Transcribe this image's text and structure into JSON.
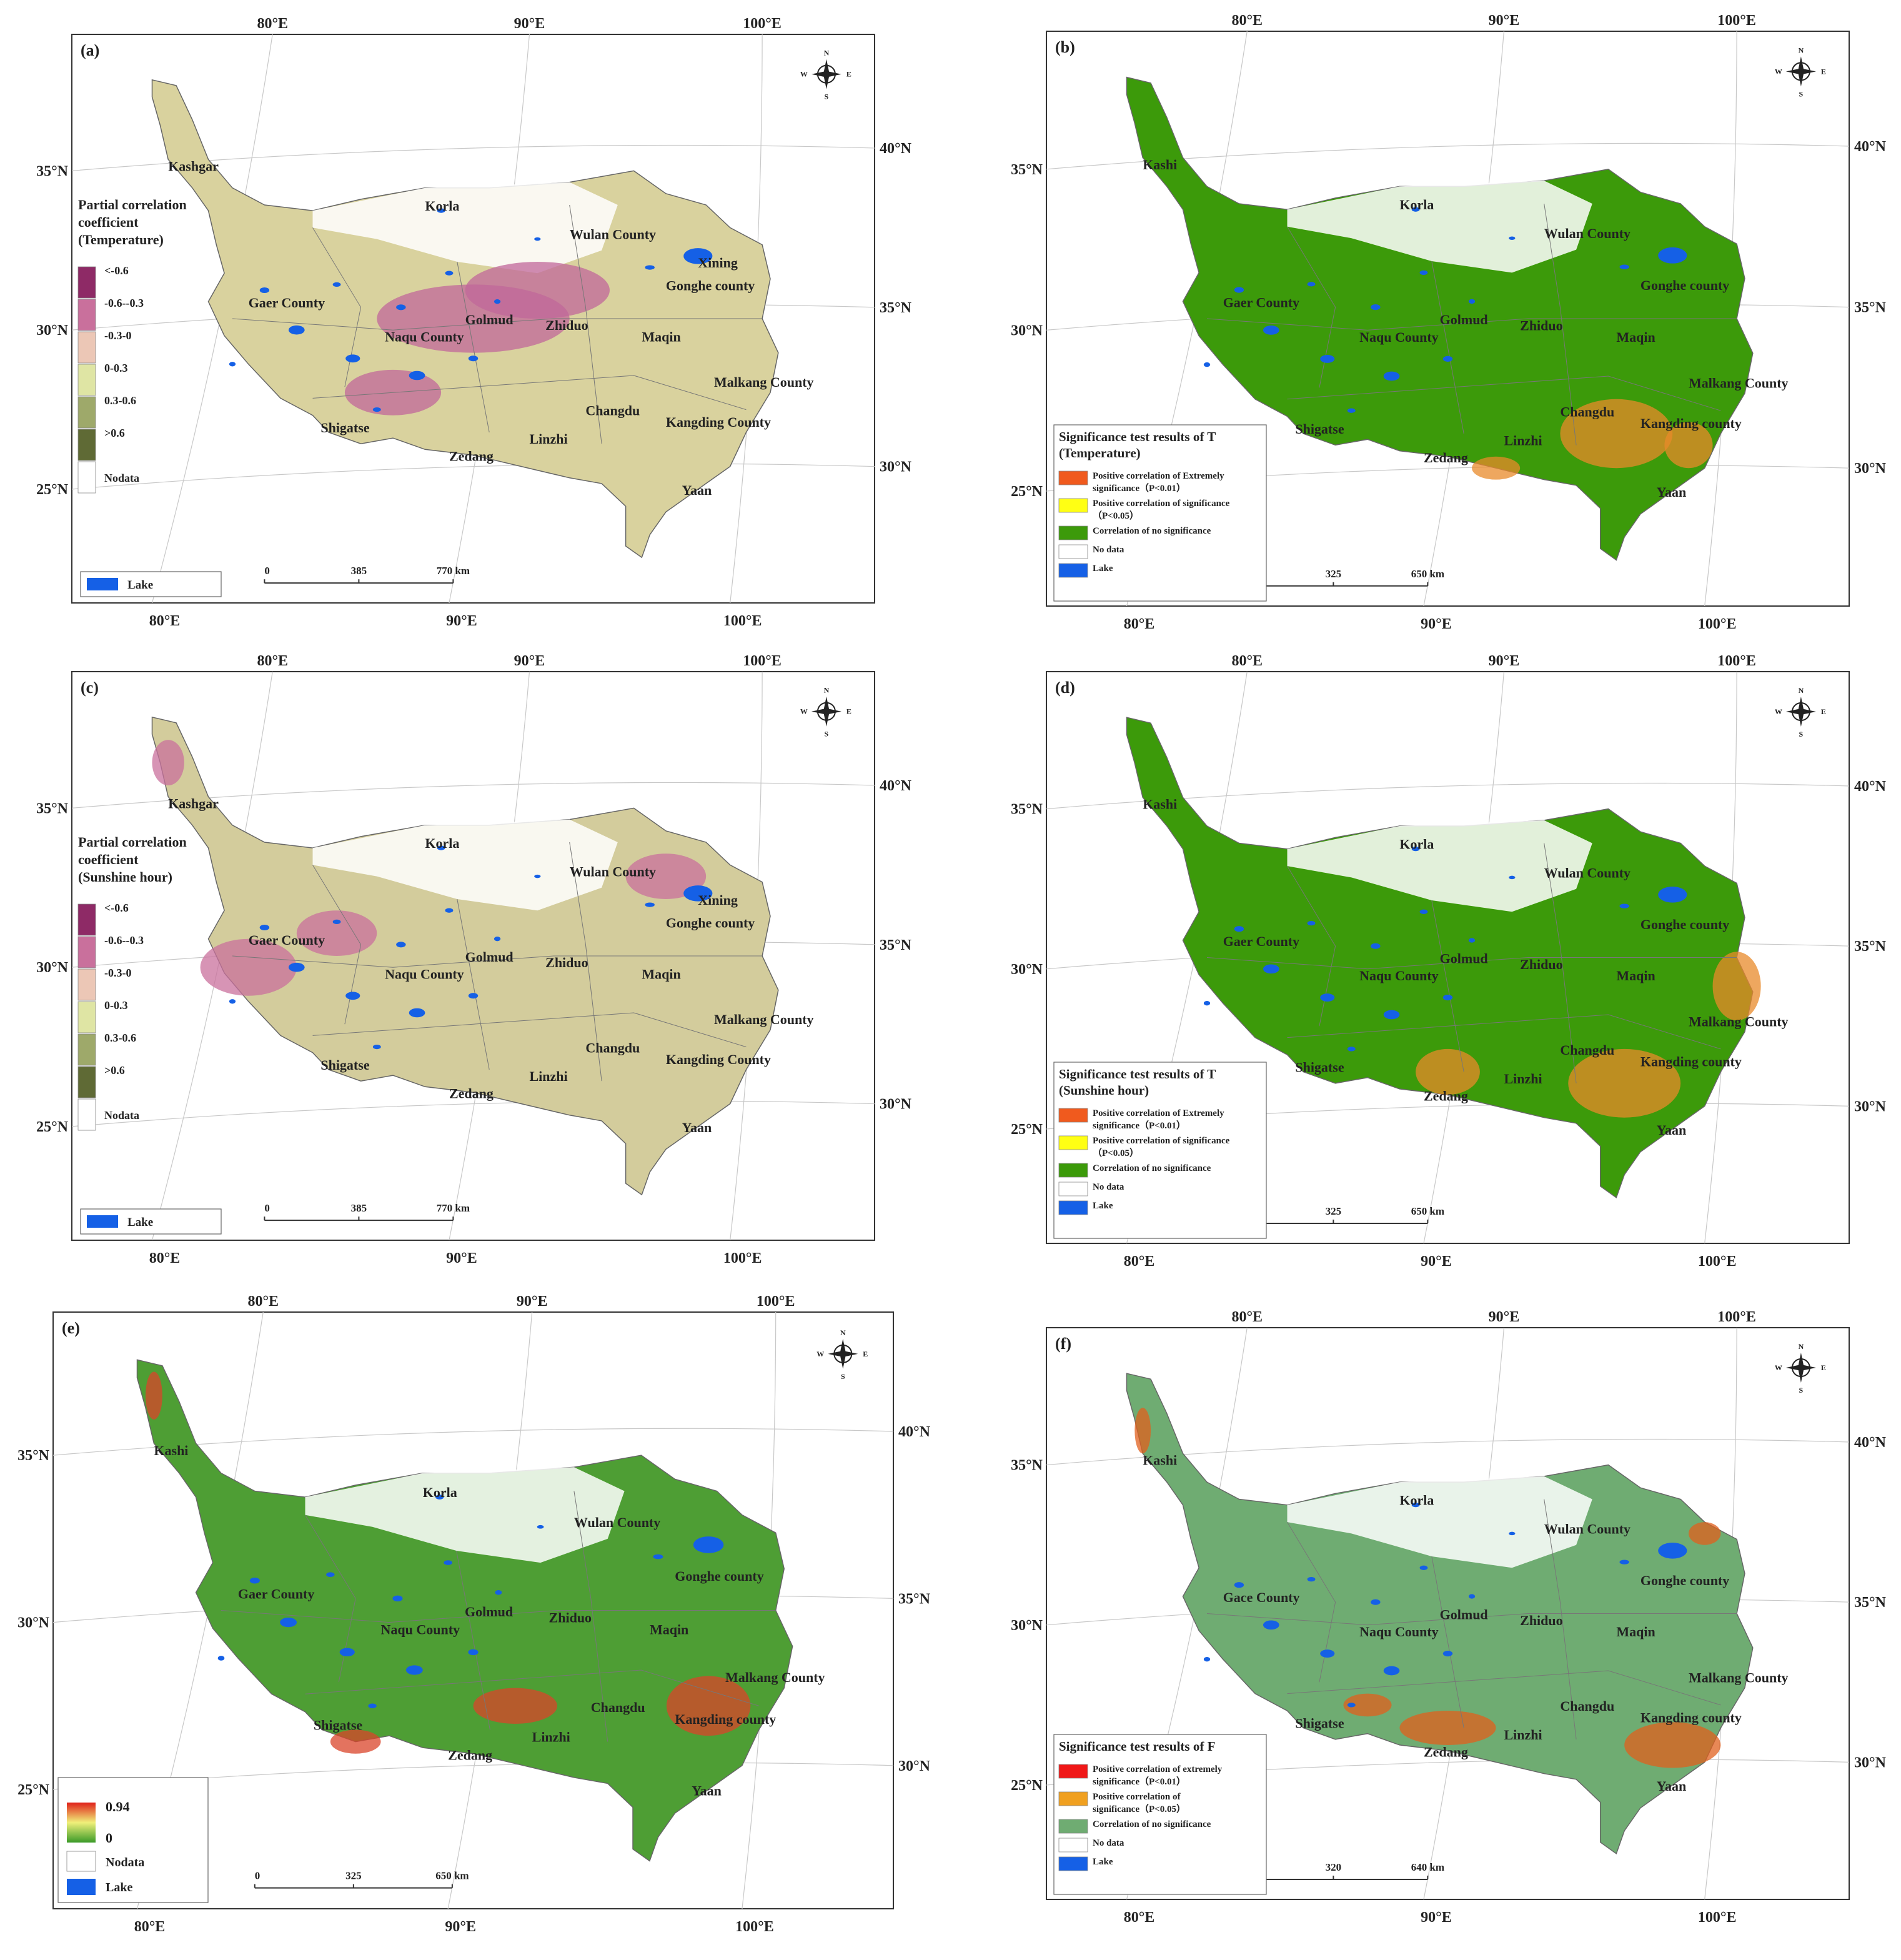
{
  "panels": [
    {
      "id": "a",
      "label": "(a)",
      "legend_type": "partial",
      "legend_title": [
        "Partial correlation",
        "coefficient",
        "(Temperature)"
      ],
      "legend_items": [
        {
          "label": "<-0.6",
          "color": "#8e2a66"
        },
        {
          "label": "-0.6--0.3",
          "color": "#c9709c"
        },
        {
          "label": "-0.3-0",
          "color": "#ecc7b6"
        },
        {
          "label": "0-0.3",
          "color": "#dfe5a4"
        },
        {
          "label": "0.3-0.6",
          "color": "#9ea96a"
        },
        {
          "label": ">0.6",
          "color": "#5f6a35"
        },
        {
          "label": "Nodata",
          "color": "#ffffff"
        }
      ],
      "lake_label": "Lake",
      "scale": [
        "0",
        "385",
        "770 km"
      ],
      "top_lon": [
        "80°E",
        "90°E",
        "100°E"
      ],
      "bottom_lon": [
        "80°E",
        "90°E",
        "100°E"
      ],
      "left_lat": [
        "35°N",
        "30°N",
        "25°N"
      ],
      "right_lat": [
        "40°N",
        "35°N",
        "30°N"
      ],
      "places": {
        "Kashgar": "Kashgar",
        "Korla": "Korla",
        "Wulan County": "Wulan County",
        "Xining": "Xining",
        "Gonghe county": "Gonghe county",
        "Gaer County": "Gaer County",
        "Golmud": "Golmud",
        "Zhiduo": "Zhiduo",
        "Naqu County": "Naqu County",
        "Maqin": "Maqin",
        "Malkang County": "Malkang County",
        "Changdu": "Changdu",
        "Kangding County": "Kangding County",
        "Shigatse": "Shigatse",
        "Zedang": "Zedang",
        "Linzhi": "Linzhi",
        "Yaan": "Yaan"
      }
    },
    {
      "id": "b",
      "label": "(b)",
      "legend_type": "signif",
      "legend_title": [
        "Significance test results of T",
        "(Temperature)"
      ],
      "legend_items": [
        {
          "label": [
            "Positive correlation of Extremely",
            "significance（P<0.01）"
          ],
          "color": "#f05a1e"
        },
        {
          "label": [
            "Positive correlation of significance",
            "（P<0.05）"
          ],
          "color": "#ffff14"
        },
        {
          "label": [
            "Correlation of  no significance"
          ],
          "color": "#3c9a0a"
        },
        {
          "label": [
            "No data"
          ],
          "color": "#ffffff"
        },
        {
          "label": [
            "Lake"
          ],
          "color": "#1560e6"
        }
      ],
      "scale": [
        "0",
        "325",
        "650 km"
      ],
      "top_lon": [
        "80°E",
        "90°E",
        "100°E"
      ],
      "bottom_lon": [
        "80°E",
        "90°E",
        "100°E"
      ],
      "left_lat": [
        "35°N",
        "30°N",
        "25°N"
      ],
      "right_lat": [
        "40°N",
        "35°N",
        "30°N"
      ],
      "places": {
        "Kashgar": "Kashi",
        "Korla": "Korla",
        "Wulan County": "Wulan County",
        "Gonghe county": "Gonghe county",
        "Gaer County": "Gaer County",
        "Golmud": "Golmud",
        "Zhiduo": "Zhiduo",
        "Naqu County": "Naqu County",
        "Maqin": "Maqin",
        "Malkang County": "Malkang County",
        "Changdu": "Changdu",
        "Kangding County": "Kangding county",
        "Shigatse": "Shigatse",
        "Zedang": "Zedang",
        "Linzhi": "Linzhi",
        "Yaan": "Yaan"
      }
    },
    {
      "id": "c",
      "label": "(c)",
      "legend_type": "partial",
      "legend_title": [
        "Partial correlation",
        "coefficient",
        "(Sunshine hour)"
      ],
      "legend_items": [
        {
          "label": "<-0.6",
          "color": "#8e2a66"
        },
        {
          "label": "-0.6--0.3",
          "color": "#c9709c"
        },
        {
          "label": "-0.3-0",
          "color": "#ecc7b6"
        },
        {
          "label": "0-0.3",
          "color": "#dfe5a4"
        },
        {
          "label": "0.3-0.6",
          "color": "#9ea96a"
        },
        {
          "label": ">0.6",
          "color": "#5f6a35"
        },
        {
          "label": "Nodata",
          "color": "#ffffff"
        }
      ],
      "lake_label": "Lake",
      "scale": [
        "0",
        "385",
        "770 km"
      ],
      "top_lon": [
        "80°E",
        "90°E",
        "100°E"
      ],
      "bottom_lon": [
        "80°E",
        "90°E",
        "100°E"
      ],
      "left_lat": [
        "35°N",
        "30°N",
        "25°N"
      ],
      "right_lat": [
        "40°N",
        "35°N",
        "30°N"
      ],
      "places": {
        "Kashgar": "Kashgar",
        "Korla": "Korla",
        "Wulan County": "Wulan County",
        "Xining": "Xining",
        "Gonghe county": "Gonghe county",
        "Gaer County": "Gaer County",
        "Golmud": "Golmud",
        "Zhiduo": "Zhiduo",
        "Naqu County": "Naqu County",
        "Maqin": "Maqin",
        "Malkang County": "Malkang County",
        "Changdu": "Changdu",
        "Kangding County": "Kangding County",
        "Shigatse": "Shigatse",
        "Zedang": "Zedang",
        "Linzhi": "Linzhi",
        "Yaan": "Yaan"
      }
    },
    {
      "id": "d",
      "label": "(d)",
      "legend_type": "signif",
      "legend_title": [
        "Significance test results of T",
        "(Sunshine hour)"
      ],
      "legend_items": [
        {
          "label": [
            "Positive correlation of Extremely",
            "significance（P<0.01）"
          ],
          "color": "#f05a1e"
        },
        {
          "label": [
            "Positive correlation of significance",
            "（P<0.05）"
          ],
          "color": "#ffff14"
        },
        {
          "label": [
            "Correlation of  no significance"
          ],
          "color": "#3c9a0a"
        },
        {
          "label": [
            "No data"
          ],
          "color": "#ffffff"
        },
        {
          "label": [
            "Lake"
          ],
          "color": "#1560e6"
        }
      ],
      "scale": [
        "0",
        "325",
        "650 km"
      ],
      "top_lon": [
        "80°E",
        "90°E",
        "100°E"
      ],
      "bottom_lon": [
        "80°E",
        "90°E",
        "100°E"
      ],
      "left_lat": [
        "35°N",
        "30°N",
        "25°N"
      ],
      "right_lat": [
        "40°N",
        "35°N",
        "30°N"
      ],
      "places": {
        "Kashgar": "Kashi",
        "Korla": "Korla",
        "Wulan County": "Wulan County",
        "Gonghe county": "Gonghe county",
        "Gaer County": "Gaer County",
        "Golmud": "Golmud",
        "Zhiduo": "Zhiduo",
        "Naqu County": "Naqu County",
        "Maqin": "Maqin",
        "Malkang County": "Malkang County",
        "Changdu": "Changdu",
        "Kangding County": "Kangding county",
        "Shigatse": "Shigatse",
        "Zedang": "Zedang",
        "Linzhi": "Linzhi",
        "Yaan": "Yaan"
      }
    },
    {
      "id": "e",
      "label": "(e)",
      "legend_type": "gradient",
      "legend_items": [
        {
          "label": "0.94",
          "color": "#e0201a"
        },
        {
          "label": "0",
          "color": "#3a9a28"
        },
        {
          "label": "Nodata",
          "color": "#ffffff"
        },
        {
          "label": "Lake",
          "color": "#1560e6"
        }
      ],
      "scale": [
        "0",
        "325",
        "650 km"
      ],
      "top_lon": [
        "80°E",
        "90°E",
        "100°E"
      ],
      "bottom_lon": [
        "80°E",
        "90°E",
        "100°E"
      ],
      "left_lat": [
        "35°N",
        "30°N",
        "25°N"
      ],
      "right_lat": [
        "40°N",
        "35°N",
        "30°N"
      ],
      "places": {
        "Kashgar": "Kashi",
        "Korla": "Korla",
        "Wulan County": "Wulan County",
        "Gonghe county": "Gonghe county",
        "Gaer County": "Gaer County",
        "Golmud": "Golmud",
        "Zhiduo": "Zhiduo",
        "Naqu County": "Naqu County",
        "Maqin": "Maqin",
        "Malkang County": "Malkang County",
        "Changdu": "Changdu",
        "Kangding County": "Kangding county",
        "Shigatse": "Shigatse",
        "Zedang": "Zedang",
        "Linzhi": "Linzhi",
        "Yaan": "Yaan"
      }
    },
    {
      "id": "f",
      "label": "(f)",
      "legend_type": "signif",
      "legend_title": [
        "Significance test results of F"
      ],
      "legend_items": [
        {
          "label": [
            "Positive correlation of extremely",
            "significance（P<0.01）"
          ],
          "color": "#f01818"
        },
        {
          "label": [
            "Positive correlation of",
            "significance（P<0.05）"
          ],
          "color": "#f0a020"
        },
        {
          "label": [
            "Correlation of  no significance"
          ],
          "color": "#6fac72"
        },
        {
          "label": [
            "No data"
          ],
          "color": "#ffffff"
        },
        {
          "label": [
            "Lake"
          ],
          "color": "#1560e6"
        }
      ],
      "scale": [
        "0",
        "320",
        "640 km"
      ],
      "top_lon": [
        "80°E",
        "90°E",
        "100°E"
      ],
      "bottom_lon": [
        "80°E",
        "90°E",
        "100°E"
      ],
      "left_lat": [
        "35°N",
        "30°N",
        "25°N"
      ],
      "right_lat": [
        "40°N",
        "35°N",
        "30°N"
      ],
      "places": {
        "Kashgar": "Kashi",
        "Korla": "Korla",
        "Wulan County": "Wulan County",
        "Gonghe county": "Gonghe county",
        "Gaer County": "Gace County",
        "Golmud": "Golmud",
        "Zhiduo": "Zhiduo",
        "Naqu County": "Naqu County",
        "Maqin": "Maqin",
        "Malkang County": "Malkang County",
        "Changdu": "Changdu",
        "Kangding County": "Kangding county",
        "Shigatse": "Shigatse",
        "Zedang": "Zedang",
        "Linzhi": "Linzhi",
        "Yaan": "Yaan"
      }
    }
  ],
  "compass": {
    "N": "N",
    "S": "S",
    "E": "E",
    "W": "W"
  },
  "colors": {
    "a_fill": "#d9d29e",
    "a_hot": "#c0679a",
    "b_fill": "#3c9a0a",
    "b_hot": "#e88a2a",
    "c_fill": "#d3cc9c",
    "c_hot": "#c9709c",
    "d_fill": "#3c9a0a",
    "d_hot": "#e88a2a",
    "e_fill": "#4e9e34",
    "e_hot": "#d9442a",
    "f_fill": "#6fac72",
    "f_hot": "#e0601e",
    "lake": "#1560e6"
  }
}
